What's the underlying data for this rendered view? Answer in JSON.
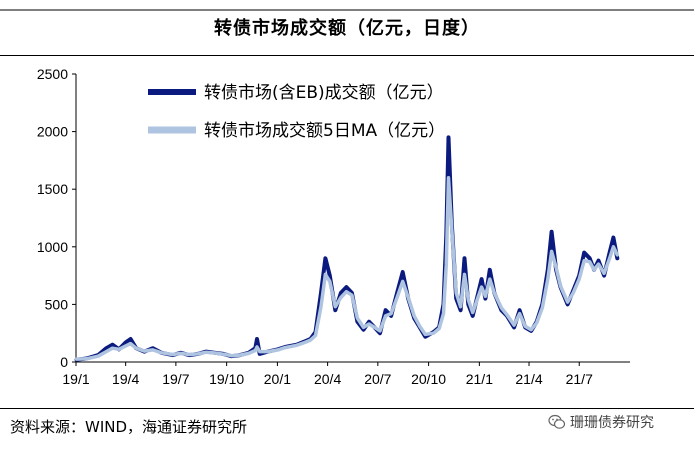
{
  "title": "转债市场成交额（亿元，日度）",
  "source": "资料来源：WIND，海通证券研究所",
  "watermark": {
    "text": "珊珊债券研究",
    "icon": "wechat-icon"
  },
  "colors": {
    "series1": "#0b1a7e",
    "series2": "#aec4e0"
  },
  "chart_data": {
    "type": "line",
    "title": "转债市场成交额（亿元，日度）",
    "ylim": [
      0,
      2500
    ],
    "yticks": [
      0,
      500,
      1000,
      1500,
      2000,
      2500
    ],
    "xtick_labels": [
      "19/1",
      "19/4",
      "19/7",
      "19/10",
      "20/1",
      "20/4",
      "20/7",
      "20/10",
      "21/1",
      "21/4",
      "21/7"
    ],
    "xtick_dates": [
      "2019-01",
      "2019-04",
      "2019-07",
      "2019-10",
      "2020-01",
      "2020-04",
      "2020-07",
      "2020-10",
      "2021-01",
      "2021-04",
      "2021-07"
    ],
    "legend_position": "top-center",
    "grid": false,
    "series": [
      {
        "name": "转债市场(含EB)成交额（亿元）",
        "color": "#0b1a7e",
        "points": [
          [
            "2019-01-02",
            20
          ],
          [
            "2019-01-20",
            30
          ],
          [
            "2019-02-10",
            60
          ],
          [
            "2019-02-25",
            120
          ],
          [
            "2019-03-08",
            150
          ],
          [
            "2019-03-20",
            110
          ],
          [
            "2019-04-01",
            170
          ],
          [
            "2019-04-10",
            200
          ],
          [
            "2019-04-20",
            120
          ],
          [
            "2019-05-05",
            90
          ],
          [
            "2019-05-20",
            120
          ],
          [
            "2019-06-05",
            80
          ],
          [
            "2019-06-25",
            60
          ],
          [
            "2019-07-10",
            80
          ],
          [
            "2019-07-25",
            60
          ],
          [
            "2019-08-10",
            70
          ],
          [
            "2019-08-25",
            90
          ],
          [
            "2019-09-10",
            80
          ],
          [
            "2019-09-25",
            70
          ],
          [
            "2019-10-10",
            50
          ],
          [
            "2019-10-25",
            60
          ],
          [
            "2019-11-10",
            80
          ],
          [
            "2019-11-22",
            120
          ],
          [
            "2019-11-25",
            200
          ],
          [
            "2019-11-30",
            70
          ],
          [
            "2019-12-15",
            90
          ],
          [
            "2020-01-02",
            110
          ],
          [
            "2020-01-15",
            130
          ],
          [
            "2020-02-05",
            150
          ],
          [
            "2020-02-20",
            180
          ],
          [
            "2020-03-01",
            200
          ],
          [
            "2020-03-10",
            260
          ],
          [
            "2020-03-20",
            600
          ],
          [
            "2020-03-28",
            900
          ],
          [
            "2020-04-05",
            750
          ],
          [
            "2020-04-15",
            450
          ],
          [
            "2020-04-25",
            600
          ],
          [
            "2020-05-05",
            650
          ],
          [
            "2020-05-15",
            600
          ],
          [
            "2020-05-25",
            350
          ],
          [
            "2020-06-05",
            280
          ],
          [
            "2020-06-15",
            350
          ],
          [
            "2020-06-25",
            300
          ],
          [
            "2020-07-05",
            250
          ],
          [
            "2020-07-15",
            450
          ],
          [
            "2020-07-25",
            400
          ],
          [
            "2020-08-05",
            600
          ],
          [
            "2020-08-15",
            780
          ],
          [
            "2020-08-25",
            550
          ],
          [
            "2020-09-05",
            380
          ],
          [
            "2020-09-15",
            300
          ],
          [
            "2020-09-25",
            220
          ],
          [
            "2020-10-10",
            260
          ],
          [
            "2020-10-20",
            300
          ],
          [
            "2020-10-28",
            500
          ],
          [
            "2020-11-02",
            1100
          ],
          [
            "2020-11-06",
            1950
          ],
          [
            "2020-11-12",
            1200
          ],
          [
            "2020-11-20",
            550
          ],
          [
            "2020-11-28",
            450
          ],
          [
            "2020-12-05",
            900
          ],
          [
            "2020-12-12",
            500
          ],
          [
            "2020-12-20",
            400
          ],
          [
            "2021-01-05",
            720
          ],
          [
            "2021-01-12",
            550
          ],
          [
            "2021-01-20",
            800
          ],
          [
            "2021-01-28",
            600
          ],
          [
            "2021-02-10",
            450
          ],
          [
            "2021-02-20",
            400
          ],
          [
            "2021-03-05",
            300
          ],
          [
            "2021-03-15",
            450
          ],
          [
            "2021-03-25",
            300
          ],
          [
            "2021-04-05",
            270
          ],
          [
            "2021-04-15",
            350
          ],
          [
            "2021-04-25",
            500
          ],
          [
            "2021-05-05",
            800
          ],
          [
            "2021-05-12",
            1130
          ],
          [
            "2021-05-20",
            800
          ],
          [
            "2021-05-28",
            650
          ],
          [
            "2021-06-10",
            500
          ],
          [
            "2021-06-20",
            620
          ],
          [
            "2021-07-01",
            750
          ],
          [
            "2021-07-10",
            950
          ],
          [
            "2021-07-20",
            900
          ],
          [
            "2021-07-28",
            800
          ],
          [
            "2021-08-05",
            880
          ],
          [
            "2021-08-15",
            750
          ],
          [
            "2021-08-25",
            950
          ],
          [
            "2021-09-01",
            1080
          ],
          [
            "2021-09-08",
            900
          ]
        ]
      },
      {
        "name": "转债市场成交额5日MA（亿元）",
        "color": "#aec4e0",
        "points": [
          [
            "2019-01-02",
            25
          ],
          [
            "2019-01-20",
            28
          ],
          [
            "2019-02-10",
            50
          ],
          [
            "2019-02-25",
            90
          ],
          [
            "2019-03-08",
            120
          ],
          [
            "2019-03-20",
            110
          ],
          [
            "2019-04-01",
            140
          ],
          [
            "2019-04-10",
            160
          ],
          [
            "2019-04-20",
            120
          ],
          [
            "2019-05-05",
            95
          ],
          [
            "2019-05-20",
            105
          ],
          [
            "2019-06-05",
            80
          ],
          [
            "2019-06-25",
            65
          ],
          [
            "2019-07-10",
            75
          ],
          [
            "2019-07-25",
            65
          ],
          [
            "2019-08-10",
            70
          ],
          [
            "2019-08-25",
            85
          ],
          [
            "2019-09-10",
            78
          ],
          [
            "2019-09-25",
            68
          ],
          [
            "2019-10-10",
            55
          ],
          [
            "2019-10-25",
            60
          ],
          [
            "2019-11-10",
            75
          ],
          [
            "2019-11-22",
            100
          ],
          [
            "2019-11-25",
            130
          ],
          [
            "2019-11-30",
            90
          ],
          [
            "2019-12-15",
            90
          ],
          [
            "2020-01-02",
            105
          ],
          [
            "2020-01-15",
            125
          ],
          [
            "2020-02-05",
            145
          ],
          [
            "2020-02-20",
            170
          ],
          [
            "2020-03-01",
            190
          ],
          [
            "2020-03-10",
            230
          ],
          [
            "2020-03-20",
            480
          ],
          [
            "2020-03-28",
            760
          ],
          [
            "2020-04-05",
            700
          ],
          [
            "2020-04-15",
            480
          ],
          [
            "2020-04-25",
            560
          ],
          [
            "2020-05-05",
            610
          ],
          [
            "2020-05-15",
            580
          ],
          [
            "2020-05-25",
            380
          ],
          [
            "2020-06-05",
            300
          ],
          [
            "2020-06-15",
            330
          ],
          [
            "2020-06-25",
            300
          ],
          [
            "2020-07-05",
            270
          ],
          [
            "2020-07-15",
            400
          ],
          [
            "2020-07-25",
            420
          ],
          [
            "2020-08-05",
            560
          ],
          [
            "2020-08-15",
            700
          ],
          [
            "2020-08-25",
            560
          ],
          [
            "2020-09-05",
            400
          ],
          [
            "2020-09-15",
            310
          ],
          [
            "2020-09-25",
            240
          ],
          [
            "2020-10-10",
            250
          ],
          [
            "2020-10-20",
            290
          ],
          [
            "2020-10-28",
            420
          ],
          [
            "2020-11-02",
            850
          ],
          [
            "2020-11-06",
            1600
          ],
          [
            "2020-11-12",
            1150
          ],
          [
            "2020-11-20",
            600
          ],
          [
            "2020-11-28",
            480
          ],
          [
            "2020-12-05",
            760
          ],
          [
            "2020-12-12",
            540
          ],
          [
            "2020-12-20",
            430
          ],
          [
            "2021-01-05",
            650
          ],
          [
            "2021-01-12",
            570
          ],
          [
            "2021-01-20",
            720
          ],
          [
            "2021-01-28",
            600
          ],
          [
            "2021-02-10",
            470
          ],
          [
            "2021-02-20",
            410
          ],
          [
            "2021-03-05",
            320
          ],
          [
            "2021-03-15",
            420
          ],
          [
            "2021-03-25",
            310
          ],
          [
            "2021-04-05",
            280
          ],
          [
            "2021-04-15",
            340
          ],
          [
            "2021-04-25",
            470
          ],
          [
            "2021-05-05",
            720
          ],
          [
            "2021-05-12",
            960
          ],
          [
            "2021-05-20",
            820
          ],
          [
            "2021-05-28",
            660
          ],
          [
            "2021-06-10",
            520
          ],
          [
            "2021-06-20",
            600
          ],
          [
            "2021-07-01",
            720
          ],
          [
            "2021-07-10",
            880
          ],
          [
            "2021-07-20",
            870
          ],
          [
            "2021-07-28",
            800
          ],
          [
            "2021-08-05",
            850
          ],
          [
            "2021-08-15",
            770
          ],
          [
            "2021-08-25",
            900
          ],
          [
            "2021-09-01",
            1000
          ],
          [
            "2021-09-08",
            930
          ]
        ]
      }
    ]
  }
}
